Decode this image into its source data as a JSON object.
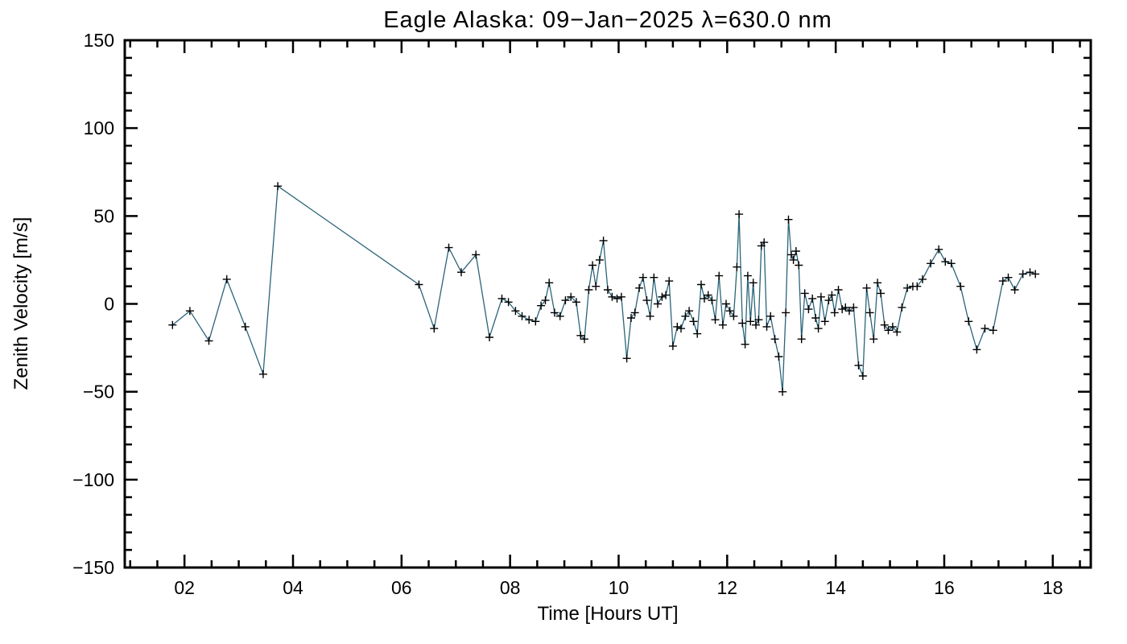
{
  "chart_data": {
    "type": "line",
    "title": "Eagle Alaska: 09−Jan−2025 λ=630.0 nm",
    "xlabel": "Time [Hours UT]",
    "ylabel": "Zenith Velocity [m/s]",
    "xlim": [
      0.9,
      18.7
    ],
    "ylim": [
      -150,
      150
    ],
    "x_ticks": [
      2,
      4,
      6,
      8,
      10,
      12,
      14,
      16,
      18
    ],
    "x_tick_labels": [
      "02",
      "04",
      "06",
      "08",
      "10",
      "12",
      "14",
      "16",
      "18"
    ],
    "y_ticks": [
      -150,
      -100,
      -50,
      0,
      50,
      100,
      150
    ],
    "y_tick_labels": [
      "−150",
      "−100",
      "−50",
      "0",
      "50",
      "100",
      "150"
    ],
    "x_minor_step": 0.5,
    "y_minor_step": 10,
    "grid": false,
    "legend": "none",
    "line_color": "#2b6479",
    "marker": "+",
    "marker_color": "#000000",
    "background_color": "#ffffff",
    "axis_color": "#000000",
    "series": [
      {
        "name": "zenith-velocity",
        "points": [
          [
            1.78,
            -12
          ],
          [
            2.1,
            -4
          ],
          [
            2.45,
            -21
          ],
          [
            2.78,
            14
          ],
          [
            3.12,
            -13
          ],
          [
            3.45,
            -40
          ],
          [
            3.72,
            67
          ],
          [
            6.32,
            11
          ],
          [
            6.6,
            -14
          ],
          [
            6.87,
            32
          ],
          [
            7.1,
            18
          ],
          [
            7.37,
            28
          ],
          [
            7.62,
            -19
          ],
          [
            7.85,
            3
          ],
          [
            7.97,
            1
          ],
          [
            8.1,
            -4
          ],
          [
            8.22,
            -7
          ],
          [
            8.35,
            -9
          ],
          [
            8.47,
            -10
          ],
          [
            8.57,
            -1
          ],
          [
            8.65,
            2
          ],
          [
            8.72,
            12
          ],
          [
            8.82,
            -5
          ],
          [
            8.92,
            -7
          ],
          [
            9.02,
            2
          ],
          [
            9.12,
            4
          ],
          [
            9.22,
            1
          ],
          [
            9.3,
            -18
          ],
          [
            9.37,
            -20
          ],
          [
            9.45,
            8
          ],
          [
            9.52,
            22
          ],
          [
            9.58,
            10
          ],
          [
            9.65,
            25
          ],
          [
            9.72,
            36
          ],
          [
            9.8,
            8
          ],
          [
            9.88,
            4
          ],
          [
            9.97,
            3
          ],
          [
            10.05,
            4
          ],
          [
            10.15,
            -31
          ],
          [
            10.23,
            -8
          ],
          [
            10.3,
            -5
          ],
          [
            10.38,
            9
          ],
          [
            10.45,
            15
          ],
          [
            10.52,
            2
          ],
          [
            10.58,
            -7
          ],
          [
            10.65,
            15
          ],
          [
            10.72,
            0
          ],
          [
            10.8,
            4
          ],
          [
            10.87,
            5
          ],
          [
            10.93,
            13
          ],
          [
            11.0,
            -24
          ],
          [
            11.08,
            -13
          ],
          [
            11.15,
            -14
          ],
          [
            11.23,
            -7
          ],
          [
            11.3,
            -4
          ],
          [
            11.38,
            -10
          ],
          [
            11.45,
            -17
          ],
          [
            11.52,
            11
          ],
          [
            11.58,
            3
          ],
          [
            11.65,
            5
          ],
          [
            11.72,
            2
          ],
          [
            11.78,
            -9
          ],
          [
            11.85,
            16
          ],
          [
            11.92,
            -12
          ],
          [
            11.98,
            0
          ],
          [
            12.05,
            -4
          ],
          [
            12.12,
            -7
          ],
          [
            12.18,
            21
          ],
          [
            12.22,
            51
          ],
          [
            12.28,
            -11
          ],
          [
            12.33,
            -23
          ],
          [
            12.38,
            16
          ],
          [
            12.43,
            -10
          ],
          [
            12.48,
            12
          ],
          [
            12.53,
            -12
          ],
          [
            12.58,
            -9
          ],
          [
            12.63,
            33
          ],
          [
            12.68,
            35
          ],
          [
            12.73,
            -13
          ],
          [
            12.8,
            -7
          ],
          [
            12.88,
            -20
          ],
          [
            12.95,
            -30
          ],
          [
            13.02,
            -50
          ],
          [
            13.08,
            -5
          ],
          [
            13.13,
            48
          ],
          [
            13.18,
            28
          ],
          [
            13.22,
            25
          ],
          [
            13.27,
            30
          ],
          [
            13.32,
            22
          ],
          [
            13.37,
            -20
          ],
          [
            13.43,
            6
          ],
          [
            13.5,
            -3
          ],
          [
            13.57,
            3
          ],
          [
            13.63,
            -8
          ],
          [
            13.68,
            -14
          ],
          [
            13.73,
            4
          ],
          [
            13.8,
            -10
          ],
          [
            13.87,
            2
          ],
          [
            13.93,
            5
          ],
          [
            13.98,
            -5
          ],
          [
            14.05,
            8
          ],
          [
            14.12,
            -3
          ],
          [
            14.18,
            -2
          ],
          [
            14.25,
            -4
          ],
          [
            14.33,
            -2
          ],
          [
            14.42,
            -35
          ],
          [
            14.5,
            -41
          ],
          [
            14.57,
            9
          ],
          [
            14.63,
            -5
          ],
          [
            14.7,
            -20
          ],
          [
            14.77,
            12
          ],
          [
            14.83,
            6
          ],
          [
            14.9,
            -12
          ],
          [
            14.97,
            -15
          ],
          [
            15.05,
            -13
          ],
          [
            15.13,
            -16
          ],
          [
            15.22,
            -2
          ],
          [
            15.32,
            9
          ],
          [
            15.42,
            10
          ],
          [
            15.5,
            10
          ],
          [
            15.6,
            14
          ],
          [
            15.75,
            23
          ],
          [
            15.9,
            31
          ],
          [
            16.02,
            24
          ],
          [
            16.13,
            23
          ],
          [
            16.3,
            10
          ],
          [
            16.45,
            -10
          ],
          [
            16.6,
            -26
          ],
          [
            16.75,
            -14
          ],
          [
            16.9,
            -15
          ],
          [
            17.08,
            13
          ],
          [
            17.18,
            15
          ],
          [
            17.3,
            8
          ],
          [
            17.45,
            17
          ],
          [
            17.58,
            18
          ],
          [
            17.68,
            17
          ]
        ]
      }
    ]
  }
}
